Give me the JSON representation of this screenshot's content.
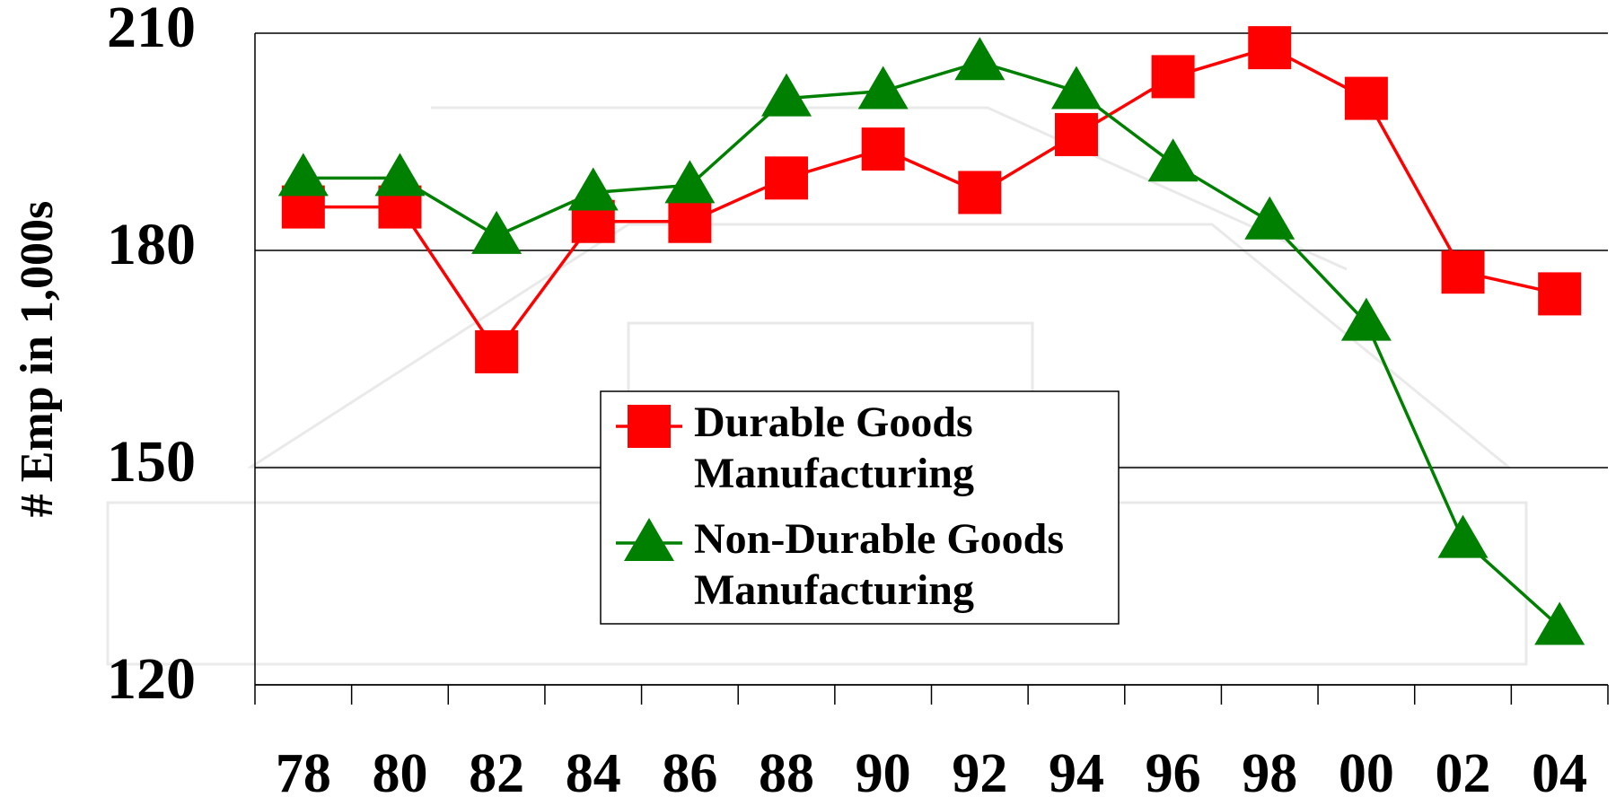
{
  "chart_data": {
    "type": "line",
    "y_label": "# Emp in 1,000s",
    "categories": [
      "78",
      "80",
      "82",
      "84",
      "86",
      "88",
      "90",
      "92",
      "94",
      "96",
      "98",
      "00",
      "02",
      "04"
    ],
    "series": [
      {
        "name": "Durable Goods Manufacturing",
        "color": "#ff0000",
        "marker": "square",
        "values": [
          186,
          186,
          166,
          184,
          184,
          190,
          194,
          188,
          196,
          204,
          208,
          201,
          177,
          174
        ]
      },
      {
        "name": "Non-Durable Goods Manufacturing",
        "color": "#008000",
        "marker": "triangle",
        "values": [
          190,
          190,
          182,
          188,
          189,
          201,
          202,
          206,
          202,
          192,
          184,
          170,
          140,
          128
        ]
      }
    ],
    "ylim": [
      120,
      210
    ],
    "yticks": [
      120,
      150,
      180,
      210
    ],
    "grid": true
  }
}
